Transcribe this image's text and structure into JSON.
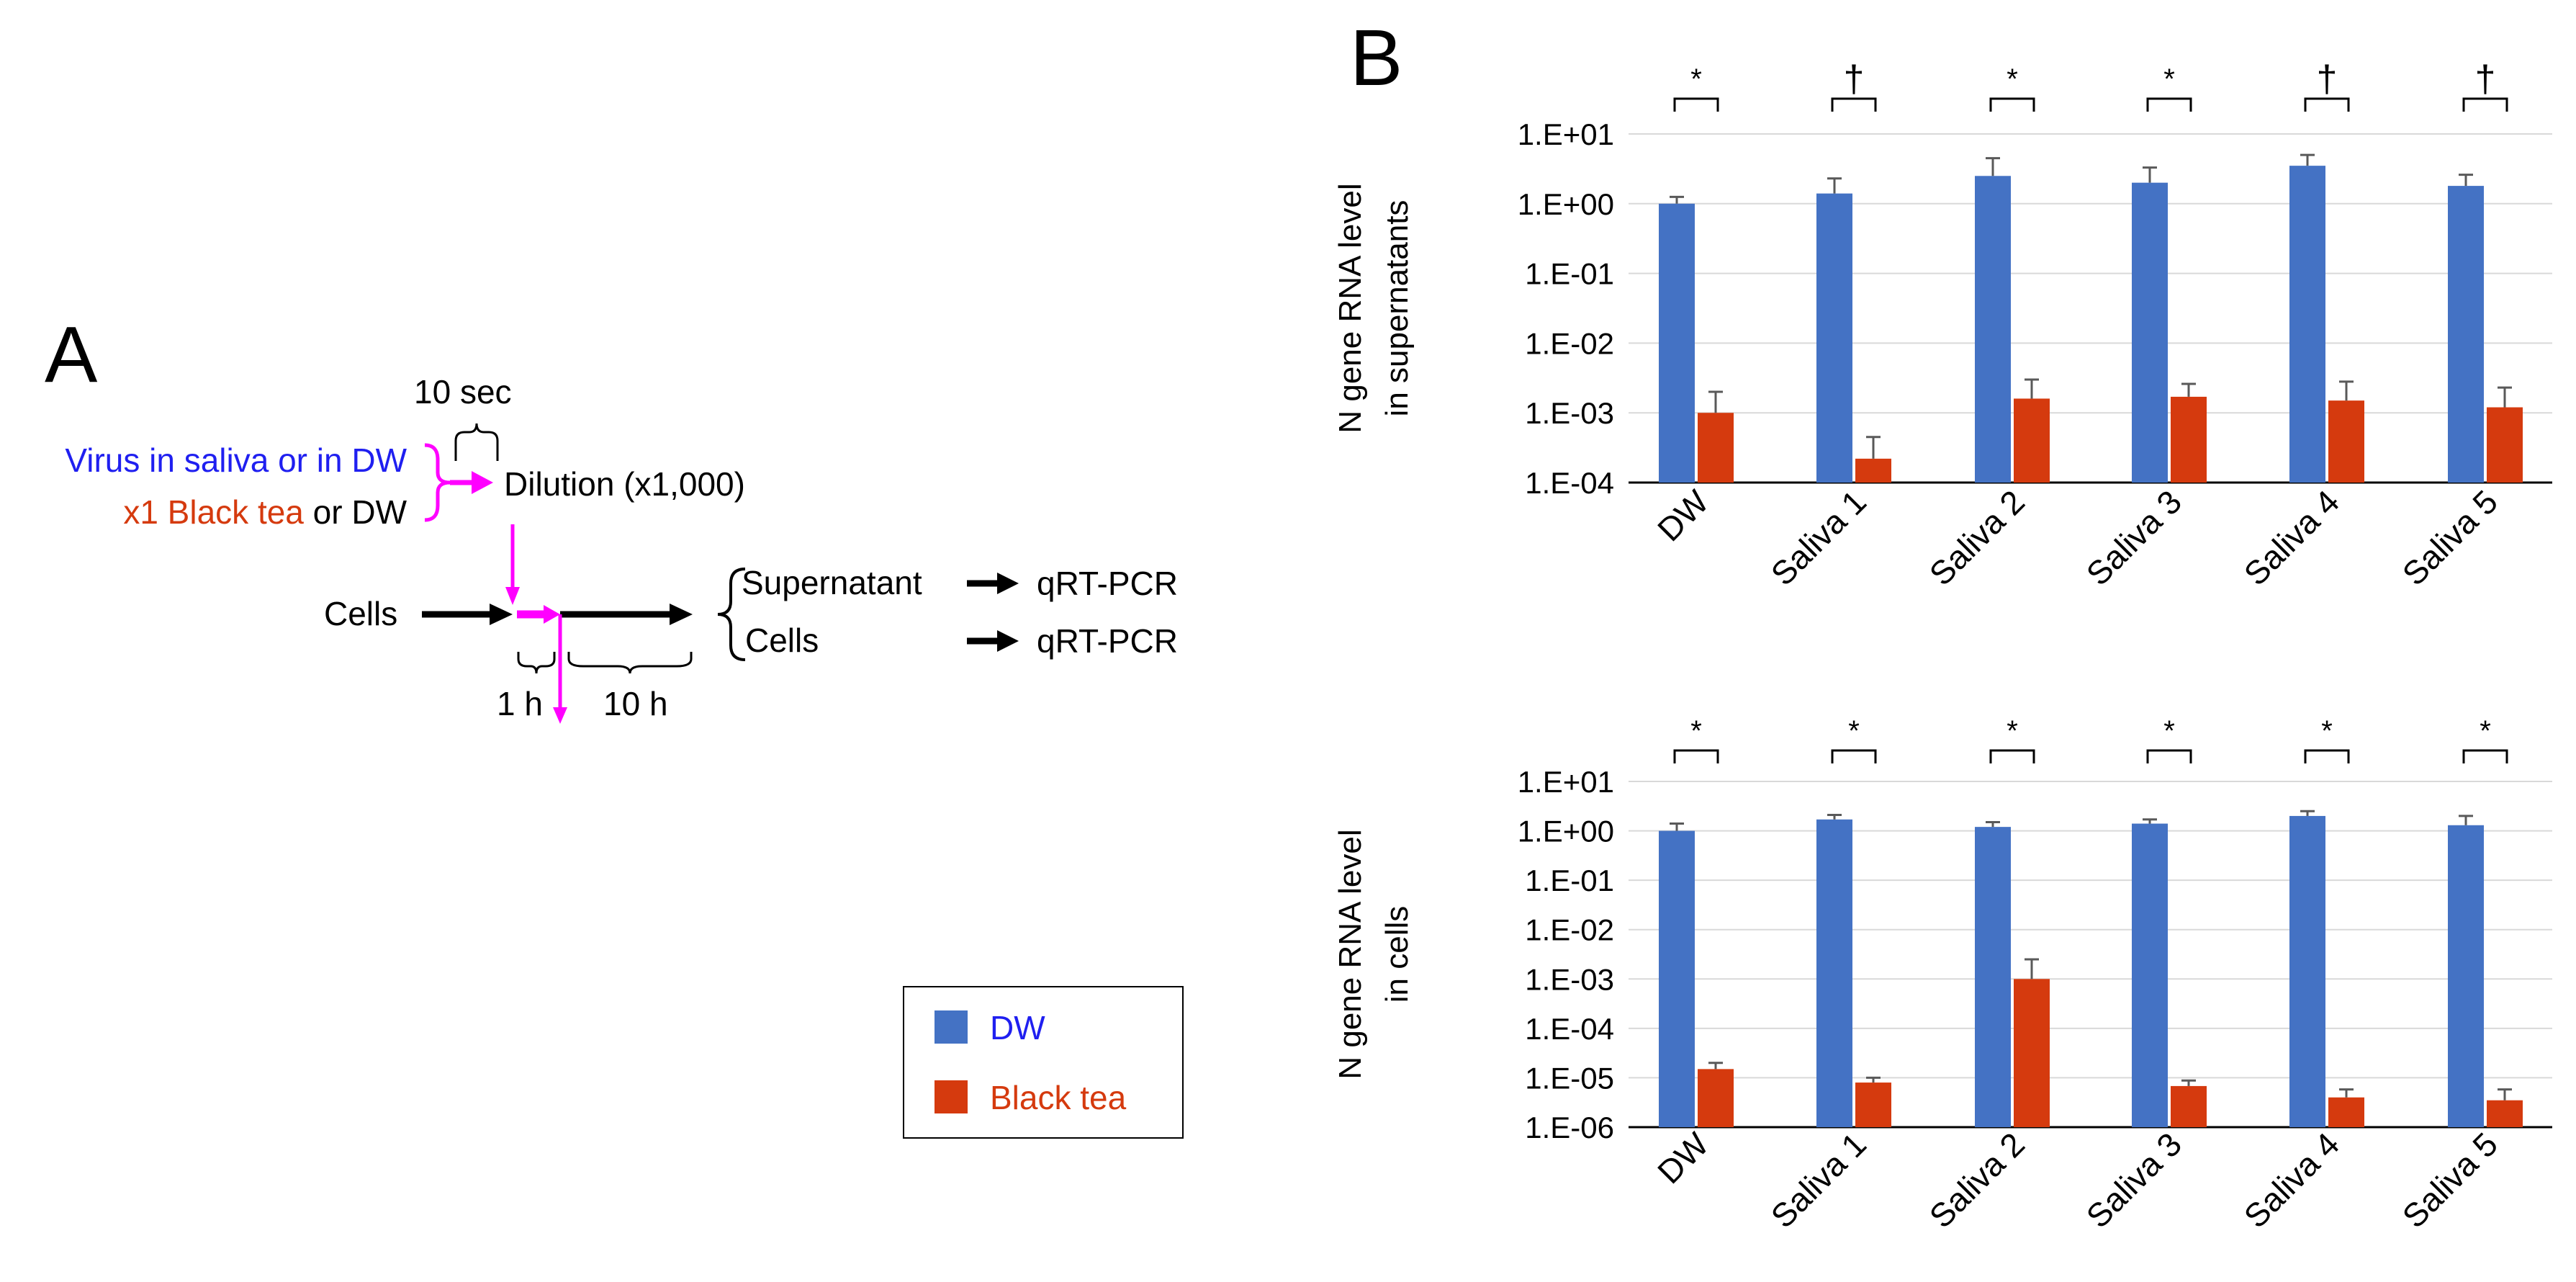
{
  "panel_a": {
    "panel_label": "A",
    "time_10sec": "10 sec",
    "virus_line": "Virus in saliva or in DW",
    "tea_line_part1": "x1 Black tea",
    "tea_line_part2": " or DW",
    "dilution": "Dilution (x1,000)",
    "cells_start": "Cells",
    "supernatant": "Supernatant",
    "cells_out": "Cells",
    "qrt1": "qRT-PCR",
    "qrt2": "qRT-PCR",
    "time_1h": "1 h",
    "time_10h": "10 h"
  },
  "legend": {
    "dw": "DW",
    "black_tea": "Black tea"
  },
  "colors": {
    "dw": "#4472C4",
    "black_tea": "#D53A0E",
    "magenta": "#FF00FF",
    "blue_text": "#1F1FF0",
    "orange_text": "#D53A0E"
  },
  "chart_data": [
    {
      "type": "bar",
      "panel_label": "B",
      "ylabel": "N gene RNA level in supernatants",
      "ylabel_lines": [
        "N gene RNA level",
        "in supernatants"
      ],
      "yscale": "log",
      "ylim": [
        0.0001,
        10
      ],
      "ytick_values": [
        10,
        1,
        0.1,
        0.01,
        0.001,
        0.0001
      ],
      "ytick_labels": [
        "1.E+01",
        "1.E+00",
        "1.E-01",
        "1.E-02",
        "1.E-03",
        "1.E-04"
      ],
      "grid": true,
      "legend_position": "outside-left",
      "categories": [
        "DW",
        "Saliva 1",
        "Saliva 2",
        "Saliva 3",
        "Saliva 4",
        "Saliva 5"
      ],
      "series": [
        {
          "name": "DW",
          "values": [
            1.0,
            1.4,
            2.5,
            2.0,
            3.5,
            1.8
          ],
          "error_upper": [
            1.25,
            2.3,
            4.5,
            3.3,
            5.0,
            2.6
          ]
        },
        {
          "name": "Black tea",
          "values": [
            0.001,
            0.00022,
            0.0016,
            0.0017,
            0.0015,
            0.0012
          ],
          "error_upper": [
            0.002,
            0.00045,
            0.003,
            0.0026,
            0.0028,
            0.0023
          ]
        }
      ],
      "significance": [
        "*",
        "†",
        "*",
        "*",
        "†",
        "†"
      ]
    },
    {
      "type": "bar",
      "ylabel": "N gene RNA level in cells",
      "ylabel_lines": [
        "N gene RNA level",
        "in cells"
      ],
      "yscale": "log",
      "ylim": [
        1e-06,
        10
      ],
      "ytick_values": [
        10,
        1,
        0.1,
        0.01,
        0.001,
        0.0001,
        1e-05,
        1e-06
      ],
      "ytick_labels": [
        "1.E+01",
        "1.E+00",
        "1.E-01",
        "1.E-02",
        "1.E-03",
        "1.E-04",
        "1.E-05",
        "1.E-06"
      ],
      "grid": true,
      "categories": [
        "DW",
        "Saliva 1",
        "Saliva 2",
        "Saliva 3",
        "Saliva 4",
        "Saliva 5"
      ],
      "series": [
        {
          "name": "DW",
          "values": [
            1.0,
            1.7,
            1.2,
            1.4,
            2.0,
            1.3
          ],
          "error_upper": [
            1.4,
            2.1,
            1.5,
            1.7,
            2.5,
            2.0
          ]
        },
        {
          "name": "Black tea",
          "values": [
            1.5e-05,
            8e-06,
            0.001,
            6.8e-06,
            4e-06,
            3.5e-06
          ],
          "error_upper": [
            2e-05,
            1e-05,
            0.0025,
            8.8e-06,
            5.8e-06,
            5.8e-06
          ]
        }
      ],
      "significance": [
        "*",
        "*",
        "*",
        "*",
        "*",
        "*"
      ]
    }
  ]
}
